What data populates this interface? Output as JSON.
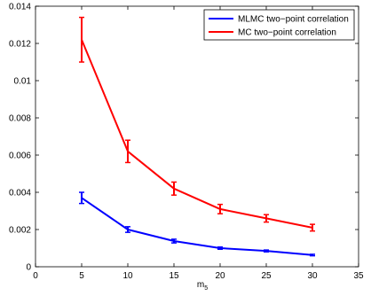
{
  "chart_data": {
    "type": "line",
    "title": "",
    "xlabel": "m",
    "xlabel_subscript": "5",
    "ylabel": "",
    "xlim": [
      0,
      35
    ],
    "ylim": [
      0,
      0.014
    ],
    "xticks": [
      0,
      5,
      10,
      15,
      20,
      25,
      30,
      35
    ],
    "yticks": [
      0,
      0.002,
      0.004,
      0.006,
      0.008,
      0.01,
      0.012,
      0.014
    ],
    "xtick_labels": [
      "0",
      "5",
      "10",
      "15",
      "20",
      "25",
      "30",
      "35"
    ],
    "ytick_labels": [
      "0",
      "0.002",
      "0.004",
      "0.006",
      "0.008",
      "0.01",
      "0.012",
      "0.014"
    ],
    "grid": false,
    "legend_position": "top-right",
    "series": [
      {
        "name": "MLMC two−point correlation",
        "color": "#0000ff",
        "x": [
          5,
          10,
          15,
          20,
          25,
          30
        ],
        "y": [
          0.0037,
          0.002,
          0.00138,
          0.001,
          0.00085,
          0.00063
        ],
        "err": [
          0.0003,
          0.00015,
          0.0001,
          6e-05,
          5e-05,
          4e-05
        ]
      },
      {
        "name": "MC two−point correlation",
        "color": "#ff0000",
        "x": [
          5,
          10,
          15,
          20,
          25,
          30
        ],
        "y": [
          0.0122,
          0.0062,
          0.0042,
          0.0031,
          0.0026,
          0.0021
        ],
        "err": [
          0.0012,
          0.0006,
          0.00035,
          0.00025,
          0.0002,
          0.00018
        ]
      }
    ]
  }
}
